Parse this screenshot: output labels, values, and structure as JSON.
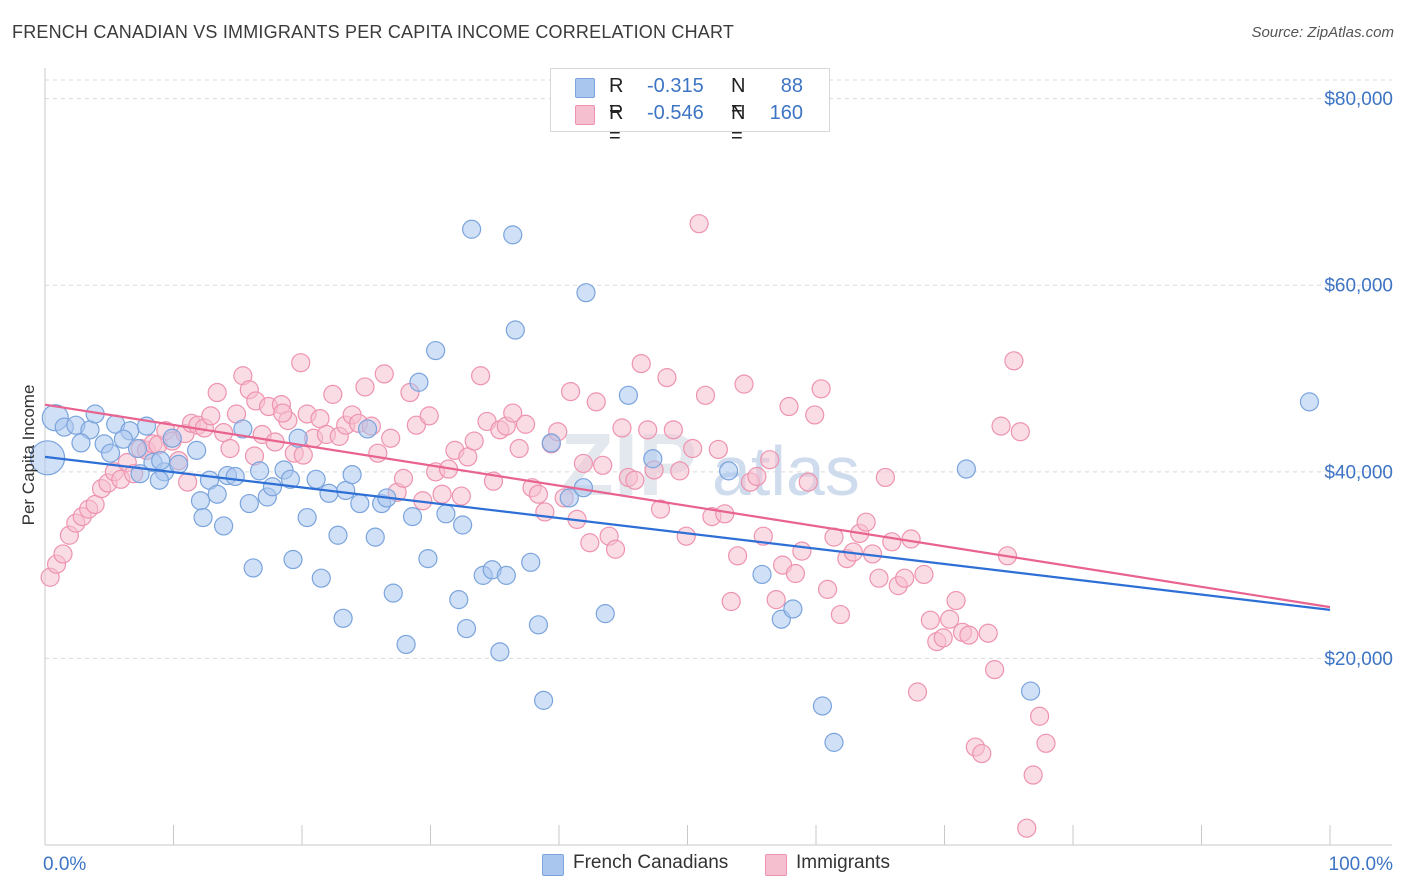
{
  "title": "FRENCH CANADIAN VS IMMIGRANTS PER CAPITA INCOME CORRELATION CHART",
  "source": "Source: ZipAtlas.com",
  "colors": {
    "blue_fill": "#a9c7ee",
    "blue_stroke": "#7ba4dd",
    "blue_line": "#2e6fd6",
    "pink_fill": "#f6bfcf",
    "pink_stroke": "#ee93af",
    "pink_line": "#e8638f",
    "tick_text": "#3d74c4",
    "grid": "#d9d9d9"
  },
  "legend": {
    "rows": [
      {
        "r_label": "R =",
        "r_value": "-0.315",
        "n_label": "N =",
        "n_value": "88"
      },
      {
        "r_label": "R =",
        "r_value": "-0.546",
        "n_label": "N =",
        "n_value": "160"
      }
    ]
  },
  "bottom_legend": {
    "series0": "French Canadians",
    "series1": "Immigrants"
  },
  "chart_data": {
    "type": "scatter",
    "title": "FRENCH CANADIAN VS IMMIGRANTS PER CAPITA INCOME CORRELATION CHART",
    "xlabel": "",
    "ylabel": "Per Capita Income",
    "xlim": [
      0,
      100
    ],
    "ylim": [
      0,
      82000
    ],
    "x_ticks_labeled": [
      "0.0%",
      "100.0%"
    ],
    "y_ticks": [
      {
        "value": 20000,
        "label": "$20,000"
      },
      {
        "value": 40000,
        "label": "$40,000"
      },
      {
        "value": 60000,
        "label": "$60,000"
      },
      {
        "value": 80000,
        "label": "$80,000"
      }
    ],
    "grid": "horizontal dashed",
    "legend_position": "top-center",
    "watermark": "ZIPatlas",
    "series": [
      {
        "name": "French Canadians",
        "color": "#a9c7ee",
        "trend": {
          "x0": 0,
          "y0": 41600,
          "x1": 100,
          "y1": 25200
        },
        "points": [
          [
            0.2,
            41500
          ],
          [
            0.8,
            45800
          ],
          [
            1.5,
            44800
          ],
          [
            2.4,
            45000
          ],
          [
            3.5,
            44500
          ],
          [
            3.9,
            46200
          ],
          [
            4.6,
            43000
          ],
          [
            5.5,
            45100
          ],
          [
            6.6,
            44400
          ],
          [
            7.9,
            44900
          ],
          [
            2.8,
            43100
          ],
          [
            5.1,
            42000
          ],
          [
            6.1,
            43500
          ],
          [
            7.2,
            42500
          ],
          [
            8.4,
            41000
          ],
          [
            9.3,
            40000
          ],
          [
            9.9,
            43600
          ],
          [
            10.4,
            40800
          ],
          [
            11.8,
            42300
          ],
          [
            8.9,
            39100
          ],
          [
            12.1,
            36900
          ],
          [
            12.8,
            39100
          ],
          [
            13.4,
            37600
          ],
          [
            14.2,
            39600
          ],
          [
            14.8,
            39500
          ],
          [
            15.4,
            44600
          ],
          [
            15.9,
            36600
          ],
          [
            16.7,
            40100
          ],
          [
            17.3,
            37300
          ],
          [
            17.7,
            38400
          ],
          [
            18.6,
            40200
          ],
          [
            19.1,
            39200
          ],
          [
            19.7,
            43600
          ],
          [
            20.4,
            35100
          ],
          [
            21.1,
            39200
          ],
          [
            21.5,
            28600
          ],
          [
            22.1,
            37700
          ],
          [
            22.8,
            33200
          ],
          [
            23.4,
            38000
          ],
          [
            23.9,
            39700
          ],
          [
            24.5,
            36600
          ],
          [
            25.1,
            44600
          ],
          [
            25.7,
            33000
          ],
          [
            26.2,
            36600
          ],
          [
            26.6,
            37200
          ],
          [
            27.1,
            27000
          ],
          [
            28.1,
            21500
          ],
          [
            28.6,
            35200
          ],
          [
            29.1,
            49600
          ],
          [
            29.8,
            30700
          ],
          [
            30.4,
            53000
          ],
          [
            31.2,
            35500
          ],
          [
            32.2,
            26300
          ],
          [
            32.5,
            34300
          ],
          [
            32.8,
            23200
          ],
          [
            33.2,
            66000
          ],
          [
            34.1,
            28900
          ],
          [
            34.8,
            29500
          ],
          [
            35.4,
            20700
          ],
          [
            35.9,
            28900
          ],
          [
            36.4,
            65400
          ],
          [
            36.6,
            55200
          ],
          [
            37.8,
            30300
          ],
          [
            38.4,
            23600
          ],
          [
            38.8,
            15500
          ],
          [
            39.4,
            43100
          ],
          [
            40.8,
            37200
          ],
          [
            41.9,
            38300
          ],
          [
            42.1,
            59200
          ],
          [
            43.6,
            24800
          ],
          [
            45.4,
            48200
          ],
          [
            47.3,
            41400
          ],
          [
            53.2,
            40100
          ],
          [
            55.8,
            29000
          ],
          [
            57.3,
            24200
          ],
          [
            58.2,
            25300
          ],
          [
            60.5,
            14900
          ],
          [
            61.4,
            11000
          ],
          [
            71.7,
            40300
          ],
          [
            76.7,
            16500
          ],
          [
            98.4,
            47500
          ],
          [
            12.3,
            35100
          ],
          [
            13.9,
            34200
          ],
          [
            16.2,
            29700
          ],
          [
            19.3,
            30600
          ],
          [
            23.2,
            24300
          ],
          [
            9.0,
            41200
          ],
          [
            7.4,
            39800
          ]
        ]
      },
      {
        "name": "Immigrants",
        "color": "#f6bfcf",
        "trend": {
          "x0": 0,
          "y0": 47200,
          "x1": 100,
          "y1": 25500
        },
        "points": [
          [
            0.4,
            28700
          ],
          [
            0.9,
            30100
          ],
          [
            1.4,
            31200
          ],
          [
            1.9,
            33200
          ],
          [
            2.4,
            34500
          ],
          [
            2.9,
            35200
          ],
          [
            3.4,
            36000
          ],
          [
            3.9,
            36500
          ],
          [
            4.4,
            38200
          ],
          [
            4.9,
            38800
          ],
          [
            5.4,
            40000
          ],
          [
            5.9,
            39200
          ],
          [
            6.4,
            41000
          ],
          [
            6.9,
            39800
          ],
          [
            7.4,
            42500
          ],
          [
            7.9,
            42300
          ],
          [
            8.4,
            43000
          ],
          [
            8.8,
            42900
          ],
          [
            9.4,
            44400
          ],
          [
            9.9,
            43300
          ],
          [
            10.4,
            41200
          ],
          [
            10.9,
            44100
          ],
          [
            11.4,
            45200
          ],
          [
            11.9,
            45000
          ],
          [
            12.4,
            44700
          ],
          [
            12.9,
            46000
          ],
          [
            13.4,
            48500
          ],
          [
            13.9,
            44200
          ],
          [
            14.4,
            42500
          ],
          [
            14.9,
            46200
          ],
          [
            15.4,
            50300
          ],
          [
            15.9,
            48800
          ],
          [
            16.4,
            47600
          ],
          [
            16.9,
            44000
          ],
          [
            17.4,
            47000
          ],
          [
            17.9,
            43200
          ],
          [
            18.4,
            47200
          ],
          [
            18.9,
            45500
          ],
          [
            19.4,
            42000
          ],
          [
            19.9,
            51700
          ],
          [
            20.4,
            46200
          ],
          [
            20.9,
            43600
          ],
          [
            21.4,
            45700
          ],
          [
            21.9,
            44000
          ],
          [
            22.4,
            48300
          ],
          [
            22.9,
            43800
          ],
          [
            23.4,
            45000
          ],
          [
            23.9,
            46100
          ],
          [
            24.4,
            45200
          ],
          [
            24.9,
            49100
          ],
          [
            25.4,
            44900
          ],
          [
            25.9,
            42000
          ],
          [
            26.4,
            50500
          ],
          [
            26.9,
            43600
          ],
          [
            27.4,
            37800
          ],
          [
            27.9,
            39300
          ],
          [
            28.4,
            48500
          ],
          [
            28.9,
            45000
          ],
          [
            29.4,
            36900
          ],
          [
            29.9,
            46000
          ],
          [
            30.4,
            40000
          ],
          [
            30.9,
            37600
          ],
          [
            31.4,
            40300
          ],
          [
            31.9,
            42300
          ],
          [
            32.4,
            37400
          ],
          [
            32.9,
            41600
          ],
          [
            33.4,
            43300
          ],
          [
            33.9,
            50300
          ],
          [
            34.4,
            45400
          ],
          [
            34.9,
            39000
          ],
          [
            35.4,
            44500
          ],
          [
            35.9,
            44900
          ],
          [
            36.4,
            46300
          ],
          [
            36.9,
            42500
          ],
          [
            37.4,
            45100
          ],
          [
            37.9,
            38300
          ],
          [
            38.4,
            37600
          ],
          [
            38.9,
            35700
          ],
          [
            39.4,
            43000
          ],
          [
            39.9,
            44300
          ],
          [
            40.4,
            37200
          ],
          [
            40.9,
            48600
          ],
          [
            41.4,
            34900
          ],
          [
            41.9,
            40900
          ],
          [
            42.4,
            32400
          ],
          [
            42.9,
            47500
          ],
          [
            43.4,
            40700
          ],
          [
            43.9,
            33100
          ],
          [
            44.4,
            31700
          ],
          [
            44.9,
            44700
          ],
          [
            45.4,
            39400
          ],
          [
            45.9,
            39100
          ],
          [
            46.4,
            51600
          ],
          [
            46.9,
            44500
          ],
          [
            47.4,
            40200
          ],
          [
            47.9,
            36000
          ],
          [
            48.4,
            50100
          ],
          [
            48.9,
            44500
          ],
          [
            49.4,
            40100
          ],
          [
            49.9,
            33100
          ],
          [
            50.4,
            42500
          ],
          [
            50.9,
            66600
          ],
          [
            51.4,
            48200
          ],
          [
            51.9,
            35200
          ],
          [
            52.4,
            42400
          ],
          [
            52.9,
            35500
          ],
          [
            53.4,
            26100
          ],
          [
            53.9,
            31000
          ],
          [
            54.4,
            49400
          ],
          [
            54.9,
            38900
          ],
          [
            55.4,
            39500
          ],
          [
            55.9,
            33100
          ],
          [
            56.4,
            41300
          ],
          [
            56.9,
            26300
          ],
          [
            57.4,
            30000
          ],
          [
            57.9,
            47000
          ],
          [
            58.4,
            29100
          ],
          [
            58.9,
            31500
          ],
          [
            59.4,
            38900
          ],
          [
            59.9,
            46100
          ],
          [
            60.4,
            48900
          ],
          [
            60.9,
            27400
          ],
          [
            61.4,
            33000
          ],
          [
            61.9,
            24700
          ],
          [
            62.4,
            30700
          ],
          [
            62.9,
            31400
          ],
          [
            63.4,
            33400
          ],
          [
            63.9,
            34600
          ],
          [
            64.4,
            31200
          ],
          [
            64.9,
            28600
          ],
          [
            65.4,
            39400
          ],
          [
            65.9,
            32500
          ],
          [
            66.4,
            27800
          ],
          [
            66.9,
            28600
          ],
          [
            67.4,
            32800
          ],
          [
            67.9,
            16400
          ],
          [
            68.4,
            29000
          ],
          [
            68.9,
            24100
          ],
          [
            69.4,
            21800
          ],
          [
            69.9,
            22200
          ],
          [
            70.4,
            24200
          ],
          [
            70.9,
            26200
          ],
          [
            71.4,
            22800
          ],
          [
            71.9,
            22500
          ],
          [
            72.4,
            10500
          ],
          [
            72.9,
            9800
          ],
          [
            73.4,
            22700
          ],
          [
            73.9,
            18800
          ],
          [
            74.4,
            44900
          ],
          [
            74.9,
            31000
          ],
          [
            75.4,
            51900
          ],
          [
            75.9,
            44300
          ],
          [
            76.4,
            1800
          ],
          [
            76.9,
            7500
          ],
          [
            77.4,
            13800
          ],
          [
            77.9,
            10900
          ],
          [
            11.1,
            38900
          ],
          [
            16.3,
            41700
          ],
          [
            18.5,
            46300
          ],
          [
            20.1,
            41800
          ]
        ]
      }
    ]
  }
}
